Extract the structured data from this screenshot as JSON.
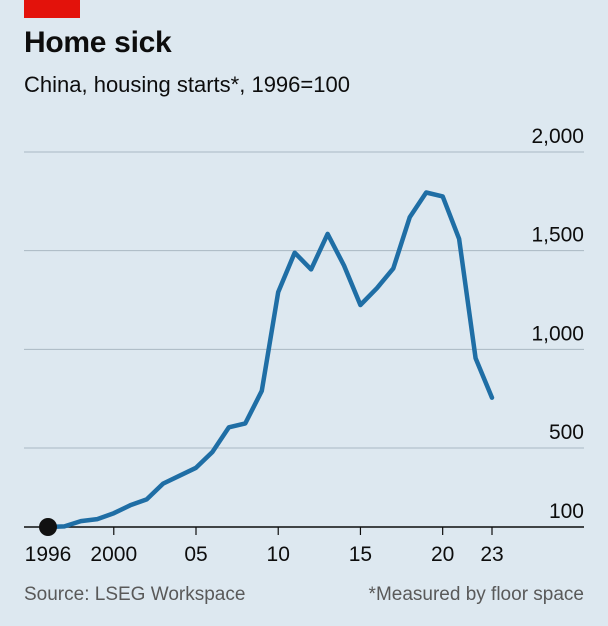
{
  "header": {
    "title": "Home sick",
    "subtitle": "China, housing starts*, 1996=100"
  },
  "footer": {
    "source": "Source: LSEG Workspace",
    "note": "*Measured by floor space"
  },
  "colors": {
    "background": "#dde8f0",
    "line": "#1f6ea5",
    "accent_tag": "#e3120b",
    "gridline": "#a9b8c3",
    "baseline": "#0d0d0d",
    "start_marker": "#111111"
  },
  "chart_data": {
    "type": "line",
    "title": "Home sick",
    "subtitle": "China, housing starts*, 1996=100",
    "xlabel": "",
    "ylabel": "",
    "xlim": [
      1996,
      2023
    ],
    "ylim": [
      100,
      2000
    ],
    "y_ticks": [
      {
        "value": 100,
        "label": "100"
      },
      {
        "value": 500,
        "label": "500"
      },
      {
        "value": 1000,
        "label": "1,000"
      },
      {
        "value": 1500,
        "label": "1,500"
      },
      {
        "value": 2000,
        "label": "2,000"
      }
    ],
    "x_ticks": [
      {
        "value": 1996,
        "label": "1996"
      },
      {
        "value": 2000,
        "label": "2000"
      },
      {
        "value": 2005,
        "label": "05"
      },
      {
        "value": 2010,
        "label": "10"
      },
      {
        "value": 2015,
        "label": "15"
      },
      {
        "value": 2020,
        "label": "20"
      },
      {
        "value": 2023,
        "label": "23"
      }
    ],
    "grid": true,
    "legend": "none",
    "start_marker": {
      "x": 1996,
      "y": 100
    },
    "series": [
      {
        "x": [
          1996,
          1997,
          1998,
          1999,
          2000,
          2001,
          2002,
          2003,
          2004,
          2005,
          2006,
          2007,
          2008,
          2009,
          2010,
          2011,
          2012,
          2013,
          2014,
          2015,
          2016,
          2017,
          2018,
          2019,
          2020,
          2021,
          2022,
          2023
        ],
        "values": [
          100,
          103,
          130,
          140,
          170,
          210,
          240,
          320,
          360,
          400,
          480,
          605,
          625,
          790,
          1290,
          1490,
          1405,
          1585,
          1425,
          1225,
          1310,
          1410,
          1670,
          1795,
          1775,
          1560,
          955,
          755
        ]
      }
    ],
    "footnote": "*Measured by floor space",
    "source": "Source: LSEG Workspace"
  }
}
